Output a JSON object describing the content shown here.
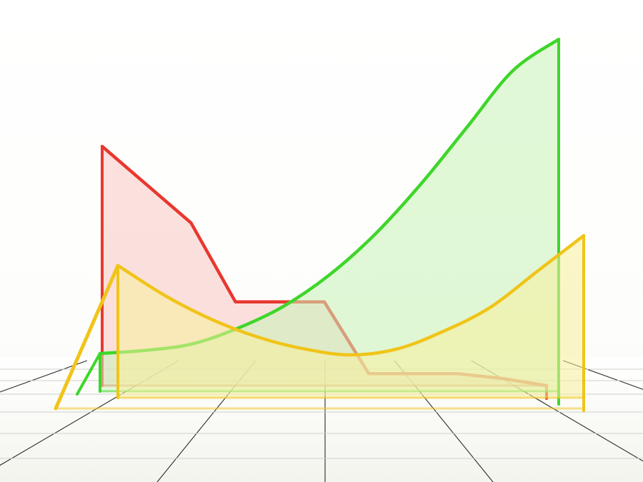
{
  "chart_data": {
    "type": "area",
    "title": "",
    "xlabel": "",
    "ylabel": "",
    "x": [
      0,
      1,
      2,
      3,
      4,
      5,
      6,
      7,
      8,
      9,
      10
    ],
    "ylim": [
      0,
      100
    ],
    "grid": true,
    "legend": "none",
    "style": "3d-glass-panels-on-reflective-floor",
    "series": [
      {
        "color": "#e8382f",
        "fill": "#f7c6c2",
        "values": [
          100,
          84,
          68,
          35,
          35,
          35,
          5,
          5,
          5,
          3,
          0
        ]
      },
      {
        "color": "#3fd62a",
        "fill": "#c8f3b8",
        "values": [
          0,
          1,
          3,
          8,
          15,
          25,
          38,
          54,
          72,
          90,
          100
        ]
      },
      {
        "color": "#f0c419",
        "fill": "#f7ee9a",
        "values": [
          20,
          15,
          11,
          8,
          6,
          5,
          6,
          9,
          13,
          19,
          25
        ]
      }
    ]
  }
}
